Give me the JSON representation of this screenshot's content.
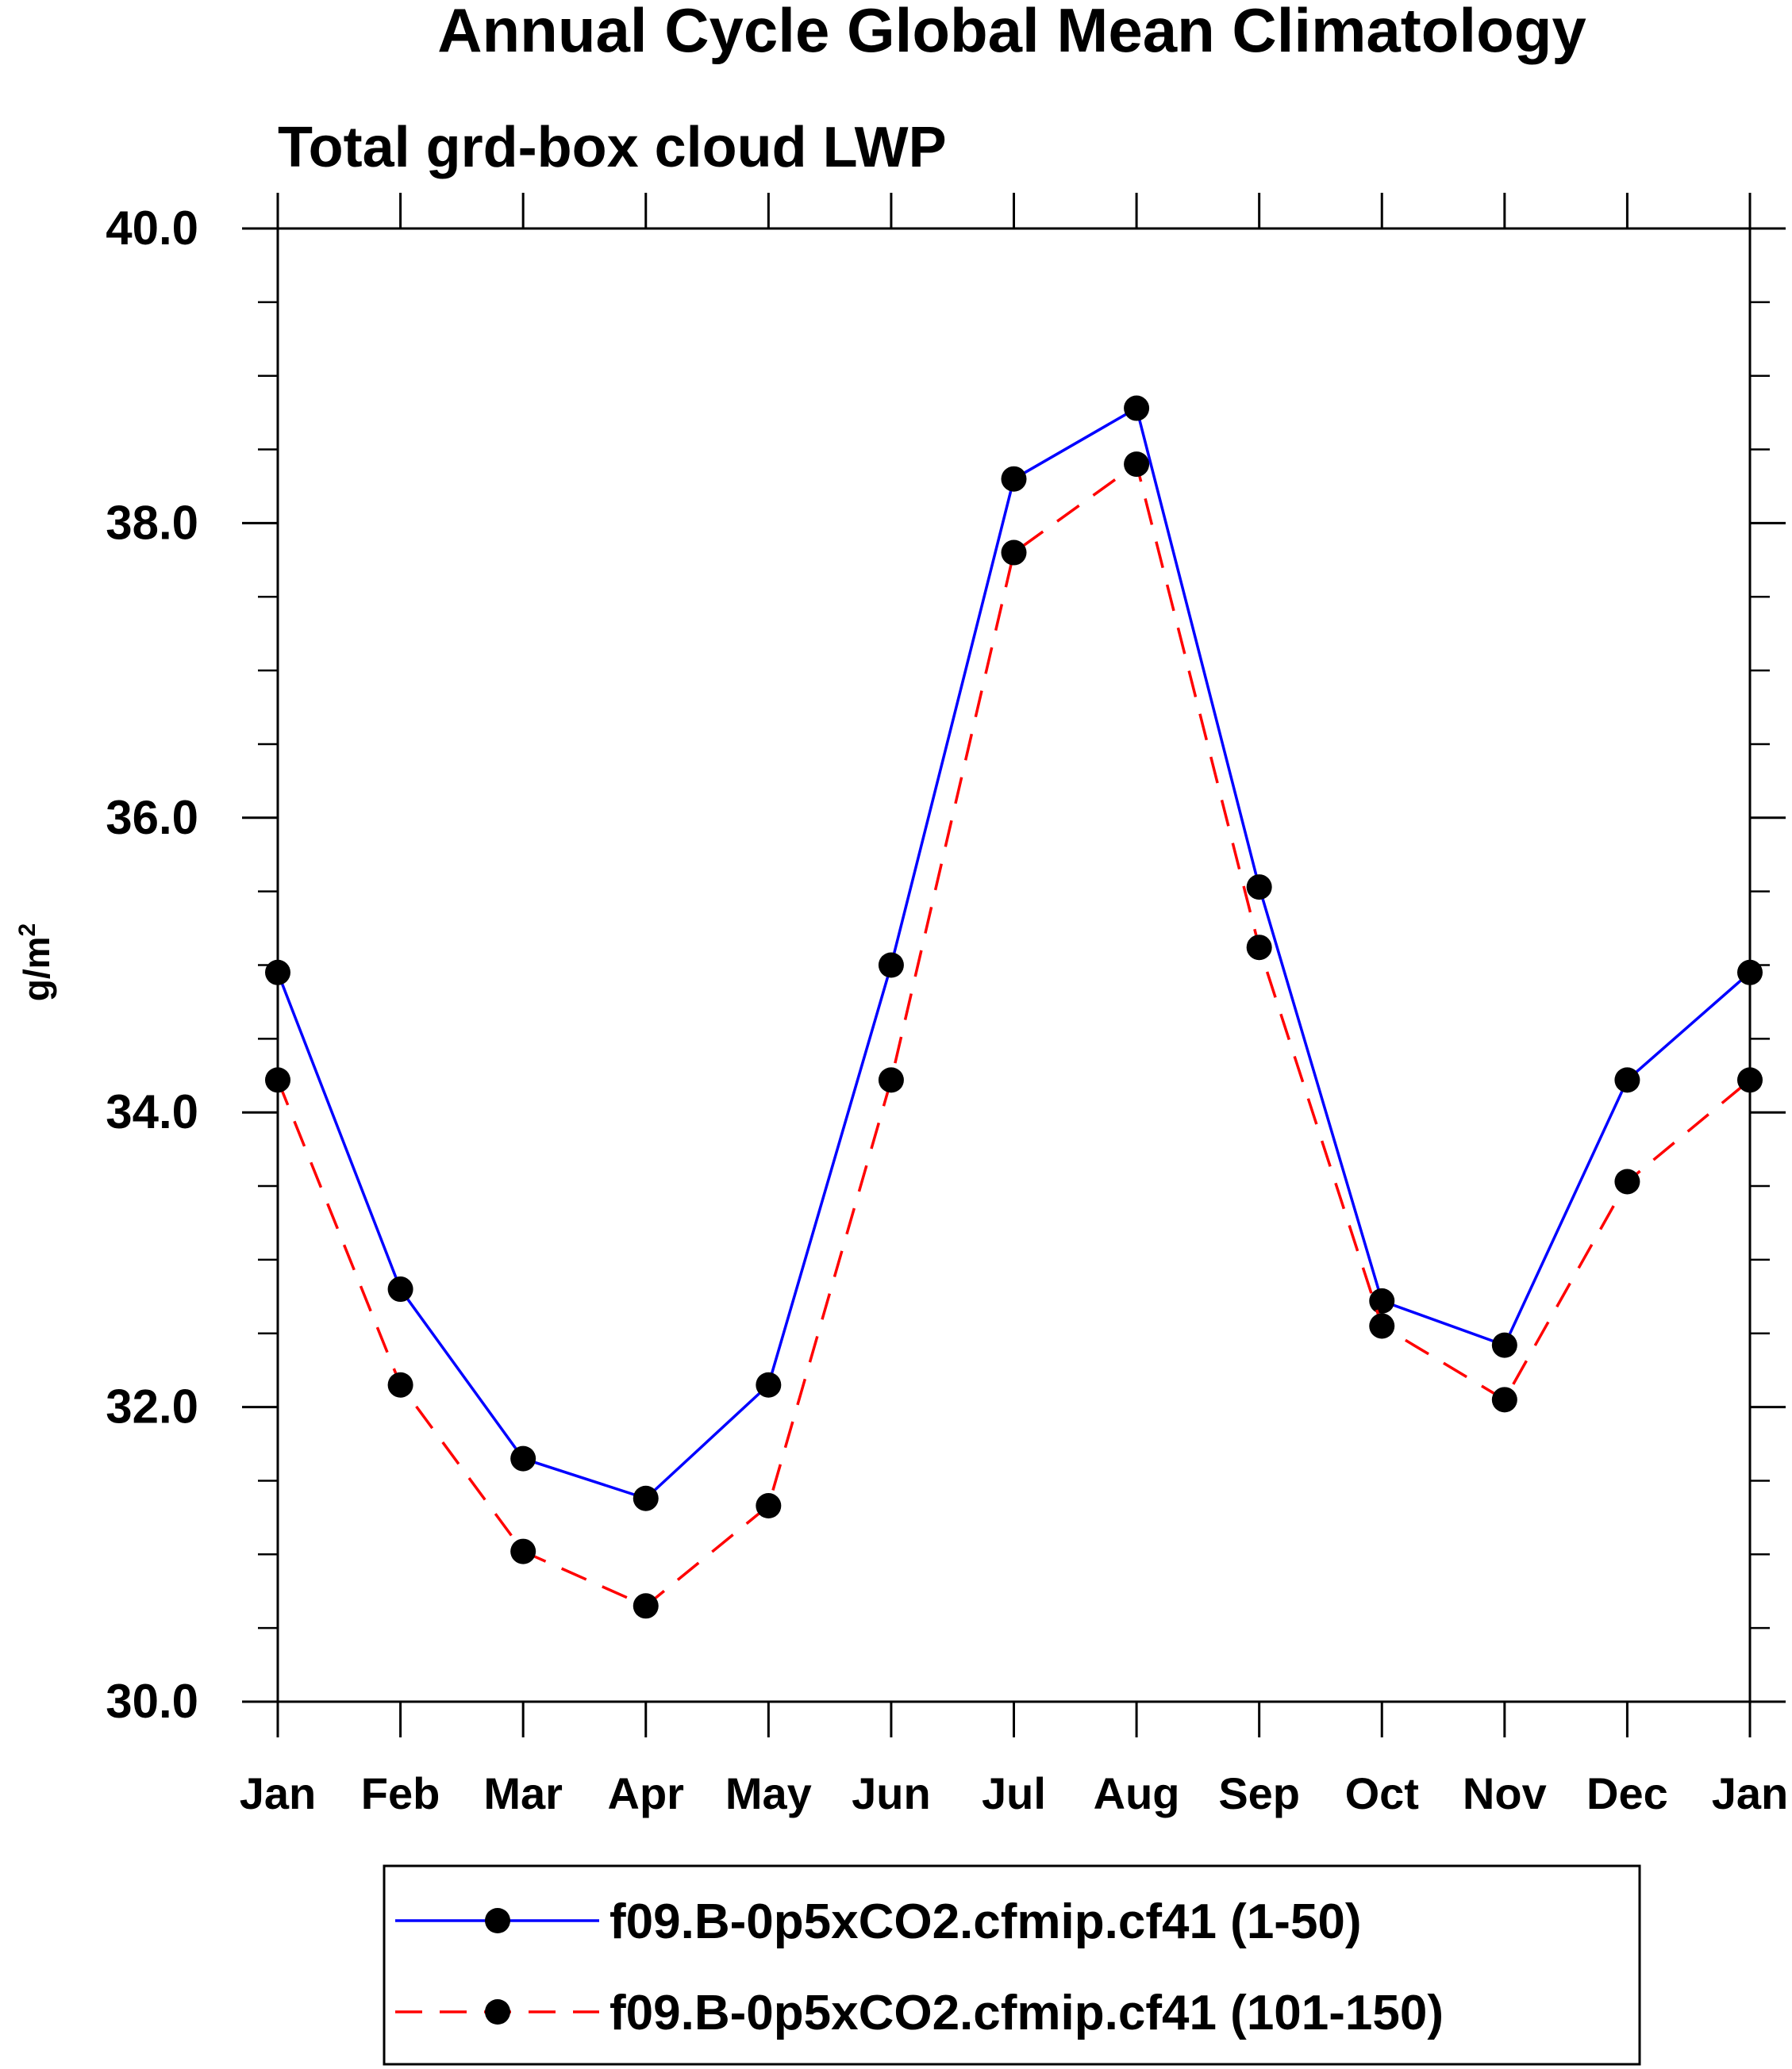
{
  "chart_data": {
    "type": "line",
    "title": "Annual Cycle Global Mean Climatology",
    "subtitle": "Total grd-box cloud LWP",
    "ylabel": "g/m",
    "ylabel_sup": "2",
    "xlabel": "",
    "categories": [
      "Jan",
      "Feb",
      "Mar",
      "Apr",
      "May",
      "Jun",
      "Jul",
      "Aug",
      "Sep",
      "Oct",
      "Nov",
      "Dec",
      "Jan"
    ],
    "ylim": [
      30.0,
      40.0
    ],
    "yticks": [
      "30.0",
      "32.0",
      "34.0",
      "36.0",
      "38.0",
      "40.0"
    ],
    "y_minor_step": 0.5,
    "grid": false,
    "legend_position": "bottom",
    "series": [
      {
        "name": "f09.B-0p5xCO2.cfmip.cf41 (1-50)",
        "color": "#0000ff",
        "dash": "solid",
        "marker_color": "#000000",
        "values": [
          34.95,
          32.8,
          31.65,
          31.38,
          32.15,
          35.0,
          38.3,
          38.78,
          35.53,
          32.72,
          32.42,
          34.22,
          34.95
        ]
      },
      {
        "name": "f09.B-0p5xCO2.cfmip.cf41 (101-150)",
        "color": "#ff0000",
        "dash": "dashed",
        "marker_color": "#000000",
        "values": [
          34.22,
          32.15,
          31.02,
          30.65,
          31.33,
          34.22,
          37.8,
          38.4,
          35.12,
          32.55,
          32.05,
          33.53,
          34.22
        ]
      }
    ]
  }
}
